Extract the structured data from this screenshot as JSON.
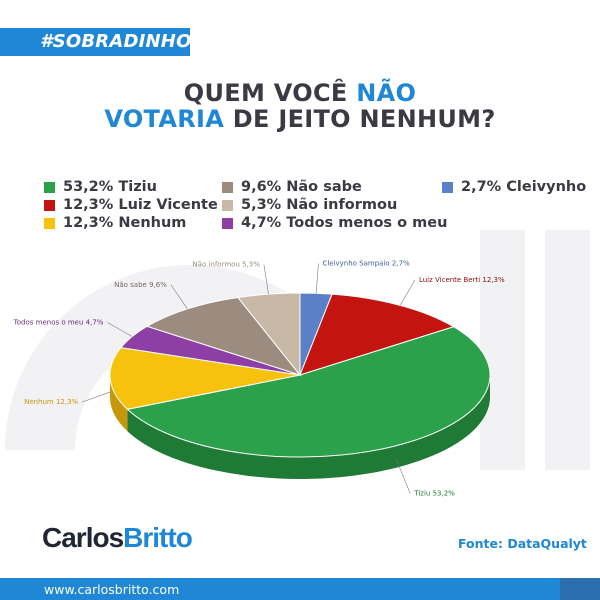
{
  "header": {
    "hashtag": "#SOBRADINHO",
    "title_line1_dark": "QUEM VOCÊ ",
    "title_line1_blue": "NÃO",
    "title_line2_blue": "VOTARIA ",
    "title_line2_dark": "DE JEITO NENHUM?"
  },
  "legend": [
    {
      "text": "53,2% Tiziu",
      "color": "#2aa14a"
    },
    {
      "text": "12,3% Luiz Vicente",
      "color": "#c4140f"
    },
    {
      "text": "12,3% Nenhum",
      "color": "#f6c20e"
    },
    {
      "text": "9,6% Não sabe",
      "color": "#9c8c7f"
    },
    {
      "text": "5,3% Não informou",
      "color": "#c8b8a6"
    },
    {
      "text": "4,7% Todos menos o meu",
      "color": "#8d3fa6"
    },
    {
      "text": "2,7% Cleivynho",
      "color": "#5a80c8"
    }
  ],
  "chart_data": {
    "type": "pie",
    "title": "",
    "slices": [
      {
        "label": "Cleivynho Sampaio 2,7%",
        "value": 2.7,
        "color": "#5a80c8",
        "dark": "#3e5f9c"
      },
      {
        "label": "Luiz Vicente Berti 12,3%",
        "value": 12.3,
        "color": "#c4140f",
        "dark": "#8d0e0a"
      },
      {
        "label": "Tiziu 53,2%",
        "value": 53.2,
        "color": "#2aa14a",
        "dark": "#1f7a36"
      },
      {
        "label": "Nenhum 12,3%",
        "value": 12.3,
        "color": "#f6c20e",
        "dark": "#c7970a"
      },
      {
        "label": "Todos menos o meu 4,7%",
        "value": 4.7,
        "color": "#8d3fa6",
        "dark": "#652c77"
      },
      {
        "label": "Não sabe 9,6%",
        "value": 9.6,
        "color": "#9c8c7f",
        "dark": "#74675c"
      },
      {
        "label": "Não informou 5,3%",
        "value": 5.3,
        "color": "#c8b8a6",
        "dark": "#9c8e7e"
      }
    ]
  },
  "brand": {
    "name_part1": "Carlos",
    "name_part2": "Britto"
  },
  "source": "Fonte: DataQualyt",
  "footer": {
    "url": "www.carlosbritto.com"
  }
}
